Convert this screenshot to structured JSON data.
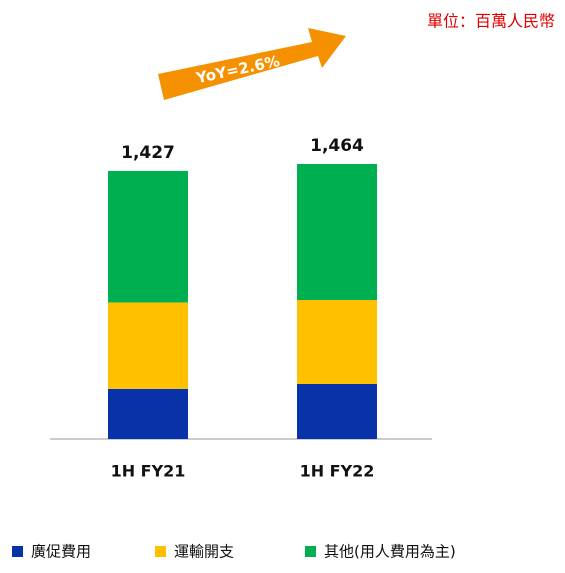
{
  "chart_data": {
    "type": "stacked_bar",
    "unit_note": "單位：百萬人民幣",
    "annotation": "YoY=2.6%",
    "categories": [
      "1H FY21",
      "1H FY22"
    ],
    "series": [
      {
        "name": "廣促費用",
        "color": "#0a32a8",
        "values": [
          267,
          293
        ]
      },
      {
        "name": "運輸開支",
        "color": "#ffc000",
        "values": [
          460,
          447
        ]
      },
      {
        "name": "其他(用人費用為主)",
        "color": "#00b050",
        "values": [
          700,
          724
        ]
      }
    ],
    "totals": [
      1427,
      1464
    ],
    "total_labels": [
      "1,427",
      "1,464"
    ]
  }
}
